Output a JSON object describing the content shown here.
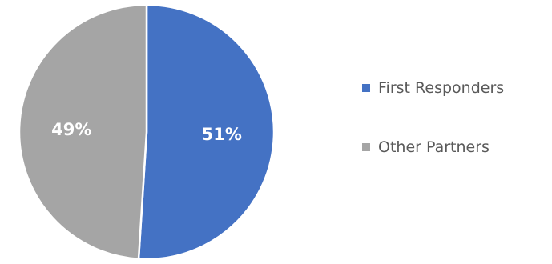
{
  "chart_data": {
    "type": "pie",
    "title": "",
    "categories": [
      "First Responders",
      "Other Partners"
    ],
    "values": [
      51,
      49
    ],
    "value_labels": [
      "51%",
      "49%"
    ],
    "colors": [
      "#4472C4",
      "#A5A5A5"
    ],
    "start_angle_deg": 0,
    "direction": "clockwise",
    "legend": "right"
  }
}
